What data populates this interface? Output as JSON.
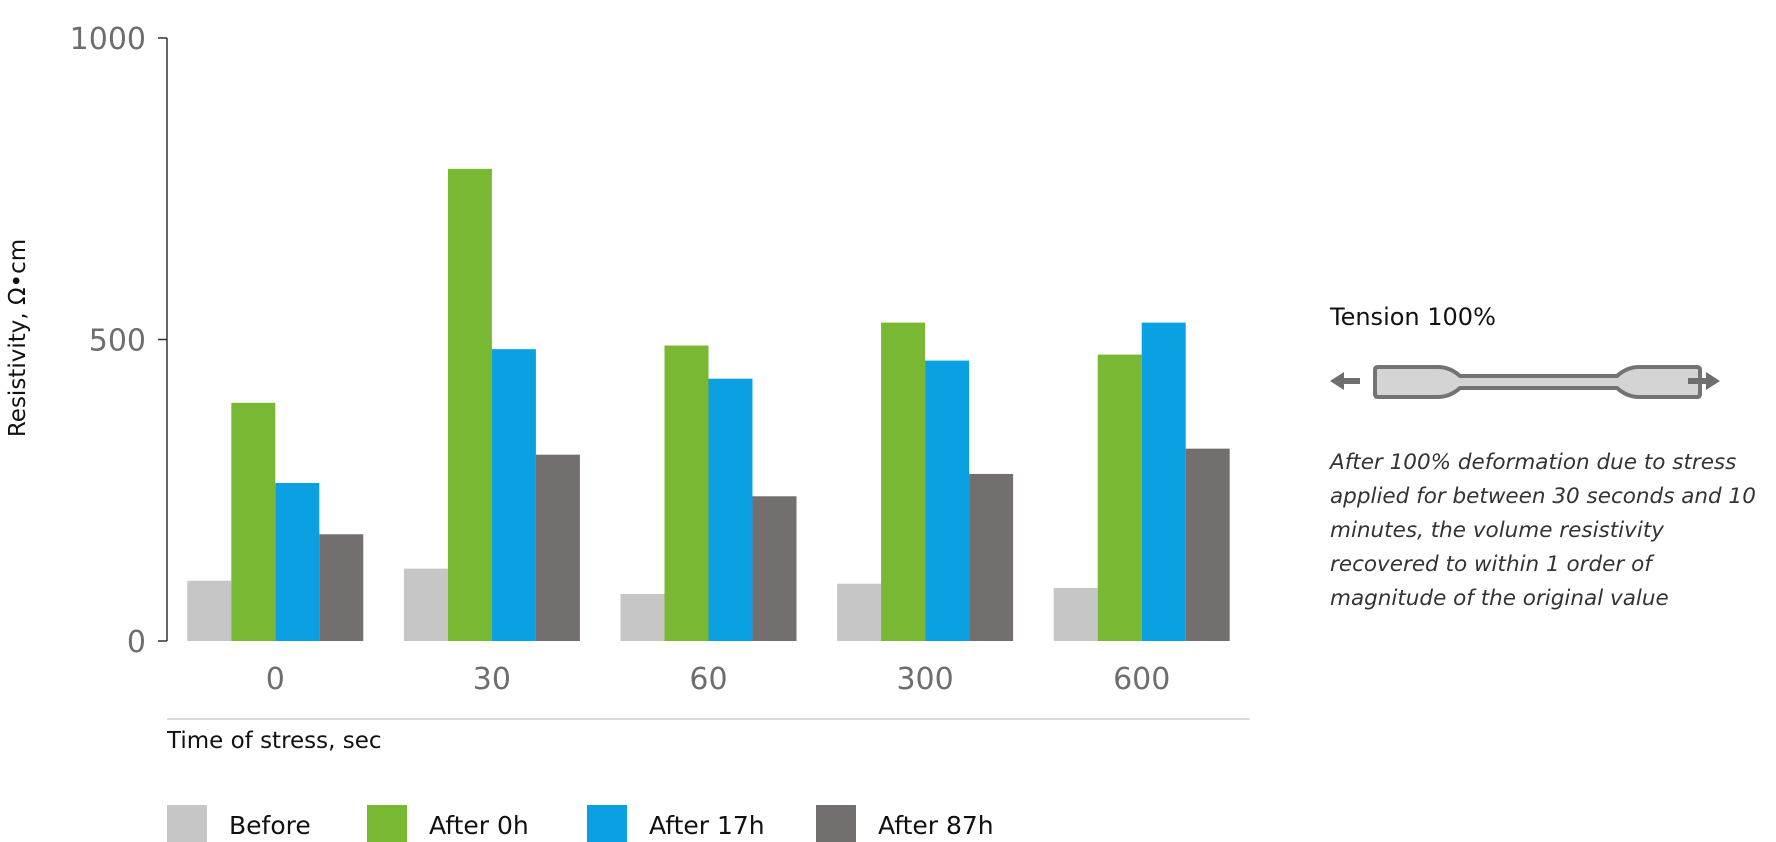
{
  "chart_data": {
    "type": "bar",
    "title": "",
    "xlabel": "Time of stress, sec",
    "ylabel": "Resistivity, Ω•cm",
    "ylim": [
      0,
      1000
    ],
    "yticks": [
      0,
      500,
      1000
    ],
    "categories": [
      "0",
      "30",
      "60",
      "300",
      "600"
    ],
    "series": [
      {
        "name": "Before",
        "color": "#c6c6c6",
        "values": [
          100,
          120,
          78,
          95,
          88
        ]
      },
      {
        "name": "After 0h",
        "color": "#78b833",
        "values": [
          395,
          783,
          490,
          528,
          475
        ]
      },
      {
        "name": "After 17h",
        "color": "#0aa0e2",
        "values": [
          262,
          484,
          435,
          465,
          528
        ]
      },
      {
        "name": "After 87h",
        "color": "#746f6f",
        "values": [
          177,
          309,
          240,
          277,
          319
        ]
      }
    ],
    "legend_position": "bottom",
    "grid": false
  },
  "panel": {
    "title": "Tension 100%",
    "note": "After 100% deformation due to stress applied for between 30 seconds and 10 minutes, the volume resistivity recovered to within 1 order of magnitude of the original value",
    "specimen_icon": "tensile-specimen-icon",
    "arrow_color": "#6e6e6e",
    "specimen_fill": "#d4d4d4",
    "specimen_stroke": "#737373"
  }
}
